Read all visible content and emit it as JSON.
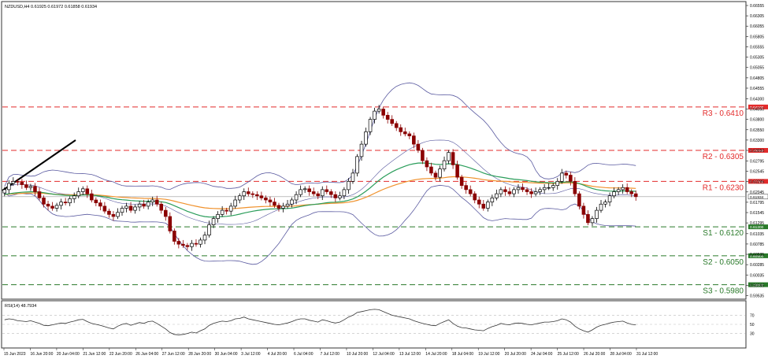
{
  "header": {
    "symbol_line": "NZDUSD,H4  0.61925 0.61972 0.61858 0.61934",
    "rsi_label": "RSI(14) 48.7934"
  },
  "colors": {
    "up_candle": "#000000",
    "down_candle": "#8b0000",
    "resistance": "#e32b2b",
    "support": "#2a7a2a",
    "bollinger": "#5a5aa0",
    "ma_green": "#2a9d5a",
    "ma_orange": "#f0922d",
    "rsi_line": "#333333"
  },
  "levels": [
    {
      "name": "R3",
      "label": "R3 - 0.6410",
      "tag": "0.64100",
      "value": 0.641,
      "kind": "resistance"
    },
    {
      "name": "R2",
      "label": "R2 - 0.6305",
      "tag": "0.63050",
      "value": 0.6305,
      "kind": "resistance"
    },
    {
      "name": "R1",
      "label": "R1 - 0.6230",
      "tag": "0.62300",
      "value": 0.623,
      "kind": "resistance"
    },
    {
      "name": "S1",
      "label": "S1 - 0.6120",
      "tag": "0.61200",
      "value": 0.612,
      "kind": "support"
    },
    {
      "name": "S2",
      "label": "S2 - 0.6050",
      "tag": "0.60500",
      "value": 0.605,
      "kind": "support"
    },
    {
      "name": "S3",
      "label": "S3 - 0.5980",
      "tag": "0.59800",
      "value": 0.598,
      "kind": "support"
    }
  ],
  "current_price_tag": "0.61934",
  "chart_data": {
    "type": "candlestick",
    "symbol": "NZDUSD",
    "timeframe": "H4",
    "ylim": [
      0.5945,
      0.6665
    ],
    "yticks": [
      "0.66555",
      "0.66305",
      "0.66055",
      "0.65805",
      "0.65555",
      "0.65305",
      "0.65055",
      "0.64805",
      "0.64555",
      "0.64300",
      "0.64050",
      "0.63800",
      "0.63550",
      "0.63300",
      "0.63050",
      "0.62795",
      "0.62545",
      "0.62295",
      "0.62045",
      "0.61795",
      "0.61545",
      "0.61295",
      "0.61035",
      "0.60785",
      "0.60535",
      "0.60285",
      "0.60035",
      "0.59785",
      "0.59535"
    ],
    "xticks": [
      "15 Jun 2023",
      "16 Jun 20:00",
      "20 Jun 04:00",
      "21 Jun 12:00",
      "22 Jun 20:00",
      "26 Jun 04:00",
      "27 Jun 12:00",
      "28 Jun 20:00",
      "30 Jun 04:00",
      "3 Jul 12:00",
      "4 Jul 20:00",
      "6 Jul 04:00",
      "7 Jul 12:00",
      "10 Jul 20:00",
      "12 Jul 04:00",
      "13 Jul 12:00",
      "14 Jul 20:00",
      "18 Jul 04:00",
      "19 Jul 12:00",
      "20 Jul 20:00",
      "24 Jul 04:00",
      "25 Jul 12:00",
      "26 Jul 20:00",
      "28 Jul 04:00",
      "31 Jul 12:00"
    ],
    "close": [
      0.621,
      0.6225,
      0.623,
      0.6228,
      0.6222,
      0.6215,
      0.6218,
      0.6205,
      0.619,
      0.6175,
      0.617,
      0.6165,
      0.6172,
      0.618,
      0.6178,
      0.6188,
      0.6195,
      0.6205,
      0.6212,
      0.62,
      0.6185,
      0.6178,
      0.617,
      0.6158,
      0.615,
      0.6145,
      0.6155,
      0.6165,
      0.617,
      0.616,
      0.6168,
      0.6175,
      0.617,
      0.618,
      0.6185,
      0.6175,
      0.616,
      0.6145,
      0.611,
      0.6085,
      0.6078,
      0.6075,
      0.6072,
      0.608,
      0.6078,
      0.6088,
      0.61,
      0.6125,
      0.614,
      0.615,
      0.616,
      0.6158,
      0.617,
      0.6185,
      0.6195,
      0.6205,
      0.62,
      0.6198,
      0.6195,
      0.619,
      0.6185,
      0.618,
      0.6172,
      0.6165,
      0.617,
      0.6175,
      0.6185,
      0.6198,
      0.621,
      0.6212,
      0.6205,
      0.62,
      0.6195,
      0.621,
      0.6205,
      0.6198,
      0.619,
      0.6195,
      0.621,
      0.623,
      0.625,
      0.629,
      0.632,
      0.635,
      0.638,
      0.64,
      0.6405,
      0.639,
      0.638,
      0.637,
      0.636,
      0.635,
      0.6345,
      0.634,
      0.632,
      0.6305,
      0.628,
      0.6265,
      0.625,
      0.624,
      0.626,
      0.628,
      0.63,
      0.627,
      0.624,
      0.622,
      0.621,
      0.62,
      0.6185,
      0.6175,
      0.6165,
      0.618,
      0.619,
      0.62,
      0.621,
      0.6205,
      0.62,
      0.621,
      0.6215,
      0.621,
      0.6205,
      0.62,
      0.6205,
      0.621,
      0.6215,
      0.6215,
      0.622,
      0.623,
      0.625,
      0.6245,
      0.623,
      0.62,
      0.617,
      0.615,
      0.613,
      0.614,
      0.616,
      0.6175,
      0.618,
      0.6195,
      0.6205,
      0.621,
      0.6215,
      0.6205,
      0.62,
      0.6193
    ],
    "rsi": {
      "label": "RSI(14)",
      "last": 48.7934,
      "levels": [
        70,
        50,
        30
      ],
      "ylim": [
        0,
        100
      ],
      "values": [
        60,
        62,
        61,
        58,
        57,
        56,
        58,
        55,
        52,
        48,
        47,
        49,
        51,
        53,
        52,
        55,
        57,
        60,
        61,
        56,
        52,
        50,
        48,
        45,
        42,
        40,
        46,
        50,
        52,
        48,
        51,
        54,
        52,
        56,
        57,
        52,
        46,
        40,
        32,
        28,
        27,
        28,
        30,
        33,
        31,
        36,
        40,
        48,
        52,
        55,
        57,
        56,
        58,
        62,
        63,
        66,
        62,
        60,
        58,
        56,
        54,
        52,
        50,
        49,
        51,
        53,
        56,
        60,
        62,
        62,
        59,
        57,
        55,
        60,
        58,
        55,
        53,
        55,
        60,
        66,
        70,
        76,
        78,
        80,
        82,
        83,
        82,
        78,
        74,
        70,
        68,
        66,
        64,
        62,
        58,
        55,
        52,
        50,
        48,
        47,
        52,
        56,
        60,
        52,
        46,
        43,
        42,
        40,
        38,
        37,
        36,
        41,
        45,
        48,
        52,
        50,
        49,
        52,
        53,
        52,
        50,
        49,
        51,
        53,
        55,
        55,
        56,
        58,
        62,
        60,
        55,
        46,
        40,
        36,
        33,
        38,
        44,
        48,
        50,
        53,
        55,
        56,
        57,
        53,
        50,
        49
      ]
    }
  }
}
